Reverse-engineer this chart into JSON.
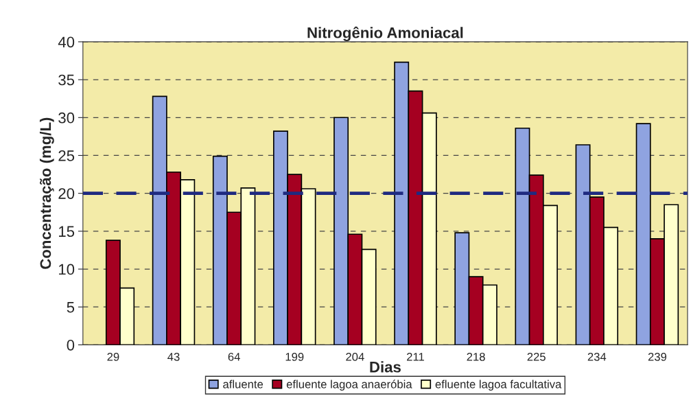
{
  "chart_data": {
    "type": "bar",
    "title": "Nitrogênio Amoniacal",
    "xlabel": "Dias",
    "ylabel": "Concentração (mg/L)",
    "categories": [
      "29",
      "43",
      "64",
      "199",
      "204",
      "211",
      "218",
      "225",
      "234",
      "239"
    ],
    "series": [
      {
        "name": "afluente",
        "color": "#8fa3e0",
        "values": [
          null,
          32.8,
          24.9,
          28.2,
          30.0,
          37.3,
          14.8,
          28.6,
          26.4,
          29.2
        ]
      },
      {
        "name": "efluente lagoa anaeróbia",
        "color": "#a50021",
        "values": [
          13.8,
          22.8,
          17.5,
          22.5,
          14.6,
          33.5,
          9.0,
          22.4,
          19.5,
          14.0
        ]
      },
      {
        "name": "efluente lagoa facultativa",
        "color": "#ffffcc",
        "values": [
          7.5,
          21.8,
          20.7,
          20.6,
          12.6,
          30.6,
          7.9,
          18.4,
          15.5,
          18.5
        ]
      }
    ],
    "ylim": [
      0,
      40
    ],
    "yticks": [
      0,
      5,
      10,
      15,
      20,
      25,
      30,
      35,
      40
    ],
    "grid": "y",
    "legend": "bottom",
    "ref_lines": [
      {
        "axis": "y",
        "value": 20,
        "color": "#1f2a80",
        "line_style": "dashed"
      }
    ]
  }
}
